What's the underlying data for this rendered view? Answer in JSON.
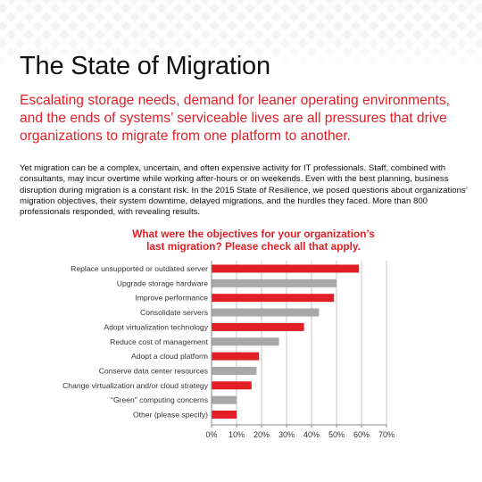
{
  "page": {
    "title": "The State of Migration",
    "intro": "Escalating storage needs, demand for leaner operating environments, and the ends of systems’ serviceable lives are all pressures that drive organizations to migrate from one platform to another.",
    "body": "Yet migration can be a complex, uncertain, and often expensive activity for IT professionals.  Staff, combined with consultants, may incur overtime while working after-hours or on weekends.  Even with the best planning, business disruption during migration is a constant risk.  In the 2015 State of Resilience, we posed questions about organizations’ migration objectives, their system downtime, delayed migrations, and the hurdles they faced.  More than 800 professionals responded, with revealing results."
  },
  "colors": {
    "red": "#e21f26",
    "gray": "#a8a8a8",
    "axis": "#888888",
    "grid": "#b8b8b8"
  },
  "chart_data": {
    "type": "bar",
    "orientation": "horizontal",
    "title_lines": [
      "What were the objectives for your organization’s",
      "last migration?  Please check all that apply."
    ],
    "categories": [
      "Replace unsupported or outdated server",
      "Upgrade storage hardware",
      "Improve performance",
      "Consolidate servers",
      "Adopt virtualization technology",
      "Reduce cost of management",
      "Adopt a cloud platform",
      "Conserve data center resources",
      "Change virtualization and/or cloud strategy",
      "“Green” computing concerns",
      "Other (please specify)"
    ],
    "values": [
      59,
      50,
      49,
      43,
      37,
      27,
      19,
      18,
      16,
      10,
      10
    ],
    "bar_colors": [
      "red",
      "gray",
      "red",
      "gray",
      "red",
      "gray",
      "red",
      "gray",
      "red",
      "gray",
      "red"
    ],
    "xlim": [
      0,
      70
    ],
    "xticks": [
      "0%",
      "10%",
      "20%",
      "30%",
      "40%",
      "50%",
      "60%",
      "70%"
    ],
    "grid": true,
    "legend": "none"
  }
}
